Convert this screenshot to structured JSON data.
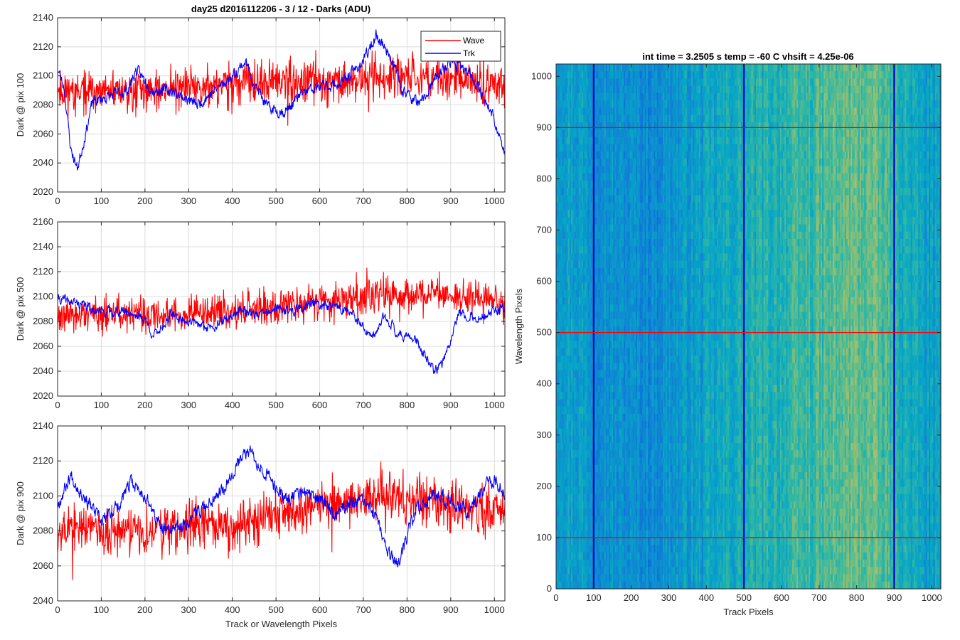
{
  "figure_title": "day25 d2016112206 - 3 / 12 - Darks (ADU)",
  "colors": {
    "wave": "#ff0000",
    "trk": "#0000ff"
  },
  "chart_data": [
    {
      "type": "line",
      "ylabel": "Dark @ pix 100",
      "xlabel": "",
      "xlim": [
        0,
        1024
      ],
      "ylim": [
        2020,
        2140
      ],
      "xticks": [
        0,
        100,
        200,
        300,
        400,
        500,
        600,
        700,
        800,
        900,
        1000
      ],
      "yticks": [
        2020,
        2040,
        2060,
        2080,
        2100,
        2120,
        2140
      ],
      "legend": {
        "position": "top-right",
        "entries": [
          "Wave",
          "Trk"
        ]
      },
      "series": [
        {
          "name": "Wave",
          "color": "#ff0000",
          "profile": [
            [
              0,
              2090
            ],
            [
              100,
              2088
            ],
            [
              200,
              2090
            ],
            [
              300,
              2092
            ],
            [
              400,
              2094
            ],
            [
              500,
              2096
            ],
            [
              600,
              2095
            ],
            [
              700,
              2098
            ],
            [
              800,
              2100
            ],
            [
              900,
              2098
            ],
            [
              1024,
              2095
            ]
          ],
          "noise": 12,
          "seed": 11
        },
        {
          "name": "Trk",
          "color": "#0000ff",
          "profile": [
            [
              0,
              2105
            ],
            [
              15,
              2092
            ],
            [
              30,
              2050
            ],
            [
              45,
              2036
            ],
            [
              60,
              2055
            ],
            [
              80,
              2082
            ],
            [
              120,
              2086
            ],
            [
              160,
              2090
            ],
            [
              180,
              2104
            ],
            [
              220,
              2090
            ],
            [
              260,
              2090
            ],
            [
              320,
              2080
            ],
            [
              360,
              2090
            ],
            [
              400,
              2100
            ],
            [
              430,
              2110
            ],
            [
              450,
              2095
            ],
            [
              480,
              2078
            ],
            [
              520,
              2075
            ],
            [
              560,
              2088
            ],
            [
              600,
              2092
            ],
            [
              650,
              2095
            ],
            [
              700,
              2110
            ],
            [
              730,
              2128
            ],
            [
              760,
              2115
            ],
            [
              790,
              2090
            ],
            [
              830,
              2080
            ],
            [
              870,
              2100
            ],
            [
              900,
              2110
            ],
            [
              950,
              2100
            ],
            [
              1000,
              2070
            ],
            [
              1024,
              2045
            ]
          ],
          "noise": 4,
          "seed": 23
        }
      ]
    },
    {
      "type": "line",
      "ylabel": "Dark @ pix 500",
      "xlabel": "",
      "xlim": [
        0,
        1024
      ],
      "ylim": [
        2020,
        2160
      ],
      "xticks": [
        0,
        100,
        200,
        300,
        400,
        500,
        600,
        700,
        800,
        900,
        1000
      ],
      "yticks": [
        2020,
        2040,
        2060,
        2080,
        2100,
        2120,
        2140,
        2160
      ],
      "series": [
        {
          "name": "Wave",
          "color": "#ff0000",
          "profile": [
            [
              0,
              2085
            ],
            [
              200,
              2085
            ],
            [
              400,
              2088
            ],
            [
              600,
              2097
            ],
            [
              700,
              2100
            ],
            [
              800,
              2102
            ],
            [
              900,
              2100
            ],
            [
              1024,
              2095
            ]
          ],
          "noise": 12,
          "seed": 37
        },
        {
          "name": "Trk",
          "color": "#0000ff",
          "profile": [
            [
              0,
              2098
            ],
            [
              40,
              2095
            ],
            [
              100,
              2088
            ],
            [
              160,
              2088
            ],
            [
              200,
              2082
            ],
            [
              220,
              2068
            ],
            [
              260,
              2085
            ],
            [
              300,
              2080
            ],
            [
              340,
              2075
            ],
            [
              380,
              2080
            ],
            [
              420,
              2090
            ],
            [
              460,
              2085
            ],
            [
              500,
              2090
            ],
            [
              540,
              2088
            ],
            [
              580,
              2095
            ],
            [
              620,
              2092
            ],
            [
              660,
              2090
            ],
            [
              700,
              2075
            ],
            [
              720,
              2065
            ],
            [
              750,
              2085
            ],
            [
              780,
              2070
            ],
            [
              820,
              2065
            ],
            [
              860,
              2040
            ],
            [
              880,
              2045
            ],
            [
              920,
              2088
            ],
            [
              960,
              2082
            ],
            [
              1000,
              2088
            ],
            [
              1024,
              2090
            ]
          ],
          "noise": 4,
          "seed": 41
        }
      ]
    },
    {
      "type": "line",
      "ylabel": "Dark @ pix 900",
      "xlabel": "Track or Wavelength Pixels",
      "xlim": [
        0,
        1024
      ],
      "ylim": [
        2040,
        2140
      ],
      "xticks": [
        0,
        100,
        200,
        300,
        400,
        500,
        600,
        700,
        800,
        900,
        1000
      ],
      "yticks": [
        2040,
        2060,
        2080,
        2100,
        2120,
        2140
      ],
      "series": [
        {
          "name": "Wave",
          "color": "#ff0000",
          "profile": [
            [
              0,
              2082
            ],
            [
              200,
              2080
            ],
            [
              400,
              2085
            ],
            [
              500,
              2090
            ],
            [
              600,
              2095
            ],
            [
              700,
              2098
            ],
            [
              800,
              2100
            ],
            [
              900,
              2095
            ],
            [
              1024,
              2090
            ]
          ],
          "noise": 12,
          "seed": 53
        },
        {
          "name": "Trk",
          "color": "#0000ff",
          "profile": [
            [
              0,
              2095
            ],
            [
              30,
              2112
            ],
            [
              60,
              2100
            ],
            [
              100,
              2085
            ],
            [
              140,
              2095
            ],
            [
              170,
              2108
            ],
            [
              200,
              2100
            ],
            [
              240,
              2080
            ],
            [
              280,
              2082
            ],
            [
              340,
              2095
            ],
            [
              380,
              2105
            ],
            [
              410,
              2118
            ],
            [
              440,
              2126
            ],
            [
              480,
              2112
            ],
            [
              520,
              2098
            ],
            [
              560,
              2102
            ],
            [
              600,
              2098
            ],
            [
              640,
              2090
            ],
            [
              680,
              2098
            ],
            [
              720,
              2092
            ],
            [
              760,
              2066
            ],
            [
              780,
              2060
            ],
            [
              820,
              2092
            ],
            [
              860,
              2102
            ],
            [
              900,
              2098
            ],
            [
              940,
              2090
            ],
            [
              980,
              2106
            ],
            [
              1000,
              2110
            ],
            [
              1024,
              2100
            ]
          ],
          "noise": 4,
          "seed": 67
        }
      ]
    },
    {
      "type": "heatmap",
      "title": "int time = 3.2505 s    temp = -60 C    vhsift = 4.25e-06",
      "xlabel": "Track Pixels",
      "ylabel": "Wavelength Pixels",
      "xlim": [
        0,
        1024
      ],
      "ylim": [
        0,
        1024
      ],
      "xticks": [
        0,
        100,
        200,
        300,
        400,
        500,
        600,
        700,
        800,
        900,
        1000
      ],
      "yticks": [
        0,
        100,
        200,
        300,
        400,
        500,
        600,
        700,
        800,
        900,
        1000
      ],
      "colormap": "parula",
      "track_profile": [
        [
          0,
          0.45
        ],
        [
          60,
          0.42
        ],
        [
          150,
          0.36
        ],
        [
          250,
          0.34
        ],
        [
          350,
          0.4
        ],
        [
          450,
          0.46
        ],
        [
          520,
          0.5
        ],
        [
          600,
          0.53
        ],
        [
          700,
          0.58
        ],
        [
          780,
          0.63
        ],
        [
          830,
          0.64
        ],
        [
          880,
          0.58
        ],
        [
          950,
          0.46
        ],
        [
          1024,
          0.38
        ]
      ],
      "vertical_lines": {
        "color": "#0000cc",
        "x": [
          100,
          500,
          900
        ]
      },
      "horizontal_lines": {
        "color": "#ff0000",
        "y": [
          100,
          500,
          900
        ]
      }
    }
  ]
}
